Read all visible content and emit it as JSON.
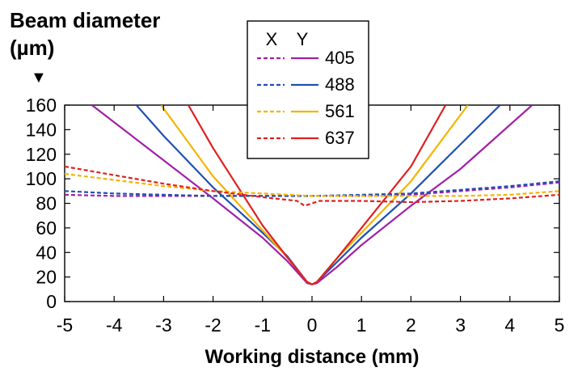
{
  "chart_data": {
    "type": "line",
    "ylabel": "Beam diameter (µm)",
    "ylabel_line1": "Beam diameter",
    "ylabel_line2": "(µm)",
    "ylabel_arrow": "▼",
    "xlabel": "Working distance (mm)",
    "xlim": [
      -5,
      5
    ],
    "ylim": [
      0,
      160
    ],
    "xticks": [
      -5,
      -4,
      -3,
      -2,
      -1,
      0,
      1,
      2,
      3,
      4,
      5
    ],
    "yticks": [
      0,
      20,
      40,
      60,
      80,
      100,
      120,
      140,
      160
    ],
    "grid": false,
    "legend_position": "top-center",
    "legend_headers": [
      "X",
      "Y"
    ],
    "legend": [
      {
        "label": "405",
        "color": "#a020a8"
      },
      {
        "label": "488",
        "color": "#1f4fb4"
      },
      {
        "label": "561",
        "color": "#f4b400"
      },
      {
        "label": "637",
        "color": "#e02020"
      }
    ],
    "series": [
      {
        "axis": "Y",
        "wavelength": "405",
        "style": "solid",
        "color": "#a020a8",
        "x": [
          -4.45,
          -3,
          -2,
          -1,
          -0.5,
          -0.1,
          0,
          0.1,
          0.5,
          1,
          2,
          3,
          4.45
        ],
        "y": [
          160,
          115,
          84,
          52,
          33,
          15,
          14,
          15,
          28,
          46,
          78,
          108,
          160
        ]
      },
      {
        "axis": "Y",
        "wavelength": "488",
        "style": "solid",
        "color": "#1f4fb4",
        "x": [
          -3.55,
          -3,
          -2,
          -1,
          -0.5,
          -0.1,
          0,
          0.1,
          0.5,
          1,
          2,
          3,
          3.8
        ],
        "y": [
          160,
          135,
          93,
          56,
          37,
          16,
          14,
          16,
          32,
          52,
          88,
          128,
          160
        ]
      },
      {
        "axis": "Y",
        "wavelength": "561",
        "style": "solid",
        "color": "#f4b400",
        "x": [
          -3.05,
          -2,
          -1,
          -0.5,
          -0.1,
          0,
          0.1,
          0.5,
          1,
          2,
          3.15
        ],
        "y": [
          160,
          102,
          58,
          36,
          16,
          14,
          16,
          35,
          56,
          98,
          160
        ]
      },
      {
        "axis": "Y",
        "wavelength": "637",
        "style": "solid",
        "color": "#e02020",
        "x": [
          -2.5,
          -2,
          -1,
          -0.5,
          -0.1,
          0,
          0.1,
          0.5,
          1,
          2,
          2.7
        ],
        "y": [
          160,
          125,
          62,
          36,
          16,
          14,
          16,
          35,
          60,
          110,
          160
        ]
      },
      {
        "axis": "X",
        "wavelength": "405",
        "style": "dashed",
        "color": "#a020a8",
        "x": [
          -5,
          -4,
          -3,
          -2,
          -1,
          0,
          1,
          2,
          3,
          4,
          5
        ],
        "y": [
          87,
          86,
          86,
          86,
          86,
          86,
          86,
          87,
          90,
          93,
          97
        ]
      },
      {
        "axis": "X",
        "wavelength": "488",
        "style": "dashed",
        "color": "#1f4fb4",
        "x": [
          -5,
          -4,
          -3,
          -2,
          -1,
          0,
          1,
          2,
          3,
          4,
          5
        ],
        "y": [
          90,
          88,
          87,
          86,
          86,
          86,
          87,
          88,
          91,
          94,
          98
        ]
      },
      {
        "axis": "X",
        "wavelength": "561",
        "style": "dashed",
        "color": "#f4b400",
        "x": [
          -5,
          -4,
          -3,
          -2,
          -1,
          0,
          1,
          2,
          3,
          4,
          5
        ],
        "y": [
          104,
          99,
          94,
          90,
          88,
          86,
          86,
          86,
          86,
          87,
          90
        ]
      },
      {
        "axis": "X",
        "wavelength": "637",
        "style": "dashed",
        "color": "#e02020",
        "x": [
          -5,
          -4,
          -3,
          -2,
          -1,
          -0.3,
          -0.15,
          0,
          0.15,
          1,
          2,
          3,
          4,
          5
        ],
        "y": [
          110,
          103,
          96,
          90,
          85,
          82,
          78,
          80,
          82,
          82,
          81,
          82,
          84,
          87
        ]
      }
    ]
  }
}
